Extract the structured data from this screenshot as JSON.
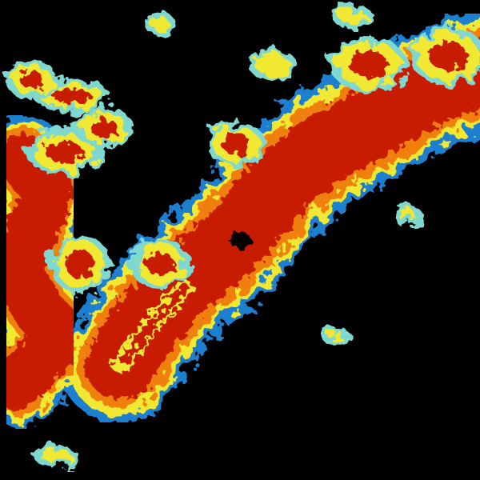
{
  "colors": {
    "background": "#000000",
    "blue": "#1a7fd0",
    "cyan": "#7fd8d0",
    "yellow": "#f0e830",
    "orange": "#f08010",
    "red": "#c81a00",
    "darkred": "#a80000"
  }
}
